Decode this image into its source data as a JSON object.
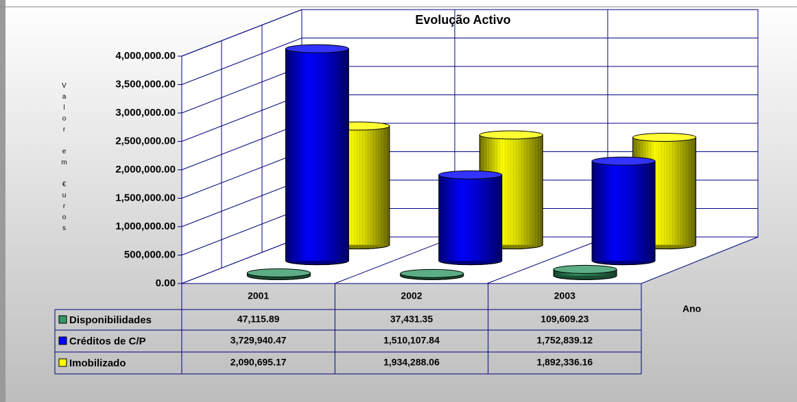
{
  "chart_data": {
    "type": "cylinder",
    "title": "Evolução Activo",
    "y_label": "Valor em €uros",
    "x_label": "Ano",
    "categories": [
      "2001",
      "2002",
      "2003"
    ],
    "series": [
      {
        "name": "Disponibilidades",
        "color": "#339966",
        "values": [
          47115.89,
          37431.35,
          109609.23
        ],
        "value_labels": [
          "47,115.89",
          "37,431.35",
          "109,609.23"
        ]
      },
      {
        "name": "Créditos de C/P",
        "color": "#0000ff",
        "values": [
          3729940.47,
          1510107.84,
          1752839.12
        ],
        "value_labels": [
          "3,729,940.47",
          "1,510,107.84",
          "1,752,839.12"
        ]
      },
      {
        "name": "Imobilizado",
        "color": "#ffff00",
        "values": [
          2090695.17,
          1934288.06,
          1892336.16
        ],
        "value_labels": [
          "2,090,695.17",
          "1,934,288.06",
          "1,892,336.16"
        ]
      }
    ],
    "ylim": [
      0,
      4000000
    ],
    "yticks": [
      {
        "value": 0,
        "label": "0.00"
      },
      {
        "value": 500000,
        "label": "500,000.00"
      },
      {
        "value": 1000000,
        "label": "1,000,000.00"
      },
      {
        "value": 1500000,
        "label": "1,500,000.00"
      },
      {
        "value": 2000000,
        "label": "2,000,000.00"
      },
      {
        "value": 2500000,
        "label": "2,500,000.00"
      },
      {
        "value": 3000000,
        "label": "3,000,000.00"
      },
      {
        "value": 3500000,
        "label": "3,500,000.00"
      },
      {
        "value": 4000000,
        "label": "4,000,000.00"
      }
    ],
    "grid": true
  }
}
